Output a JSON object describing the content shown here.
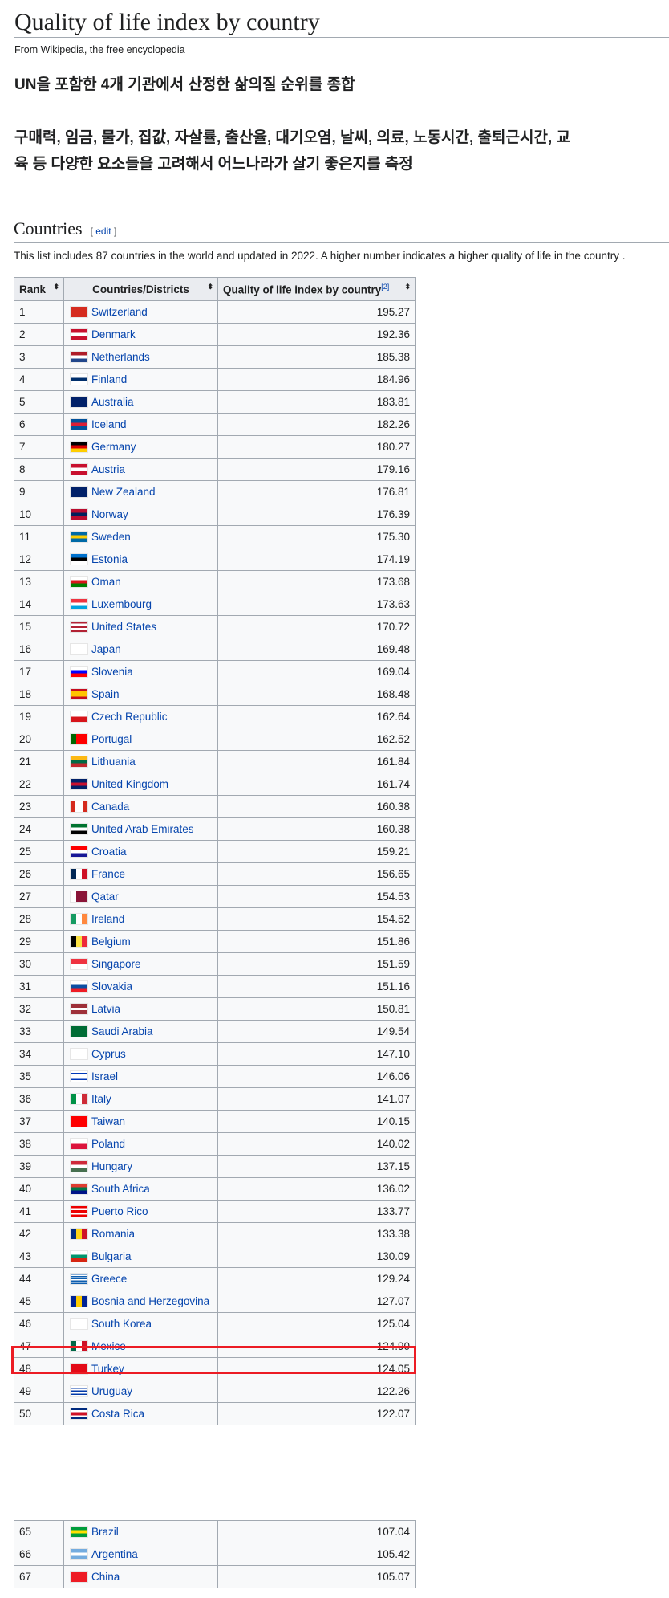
{
  "page": {
    "title": "Quality of life index by country",
    "tagline": "From Wikipedia, the free encyclopedia",
    "intro_line1": "UN을 포함한 4개 기관에서 산정한 삶의질 순위를 종합",
    "intro_line2": "구매력, 임금, 물가, 집값, 자살률, 출산율, 대기오염, 날씨, 의료, 노동시간, 출퇴근시간, 교육 등 다양한 요소들을 고려해서 어느나라가 살기 좋은지를 측정",
    "section_title": "Countries",
    "edit_open": "[",
    "edit_label": "edit",
    "edit_close": "]",
    "description": "This list includes 87 countries in the world and updated in 2022. A higher number indicates a higher quality of life in the country ."
  },
  "colors": {
    "link": "#0645ad",
    "border": "#a2a9b1",
    "header_bg": "#eaecf0",
    "cell_bg": "#f8f9fa",
    "highlight": "#ec1c24"
  },
  "table": {
    "headers": {
      "rank": "Rank",
      "country": "Countries/Districts",
      "index": "Quality of life index by country",
      "index_ref": "[2]",
      "sort_icon": "⬍"
    },
    "highlighted_rank": "46",
    "rows": [
      {
        "rank": "1",
        "country": "Switzerland",
        "value": "195.27",
        "flag": {
          "dir": "h",
          "colors": [
            "#d52b1e"
          ]
        }
      },
      {
        "rank": "2",
        "country": "Denmark",
        "value": "192.36",
        "flag": {
          "dir": "h",
          "colors": [
            "#c8102e",
            "#fff",
            "#c8102e"
          ]
        }
      },
      {
        "rank": "3",
        "country": "Netherlands",
        "value": "185.38",
        "flag": {
          "dir": "h",
          "colors": [
            "#ae1c28",
            "#fff",
            "#21468b"
          ]
        }
      },
      {
        "rank": "4",
        "country": "Finland",
        "value": "184.96",
        "flag": {
          "dir": "h",
          "colors": [
            "#fff",
            "#002f6c",
            "#fff"
          ]
        }
      },
      {
        "rank": "5",
        "country": "Australia",
        "value": "183.81",
        "flag": {
          "dir": "h",
          "colors": [
            "#012169"
          ]
        }
      },
      {
        "rank": "6",
        "country": "Iceland",
        "value": "182.26",
        "flag": {
          "dir": "h",
          "colors": [
            "#02529c",
            "#dc1e35",
            "#02529c"
          ]
        }
      },
      {
        "rank": "7",
        "country": "Germany",
        "value": "180.27",
        "flag": {
          "dir": "h",
          "colors": [
            "#000",
            "#dd0000",
            "#ffce00"
          ]
        }
      },
      {
        "rank": "8",
        "country": "Austria",
        "value": "179.16",
        "flag": {
          "dir": "h",
          "colors": [
            "#c8102e",
            "#fff",
            "#c8102e"
          ]
        }
      },
      {
        "rank": "9",
        "country": "New Zealand",
        "value": "176.81",
        "flag": {
          "dir": "h",
          "colors": [
            "#012169"
          ]
        }
      },
      {
        "rank": "10",
        "country": "Norway",
        "value": "176.39",
        "flag": {
          "dir": "h",
          "colors": [
            "#ba0c2f",
            "#00205b",
            "#ba0c2f"
          ]
        }
      },
      {
        "rank": "11",
        "country": "Sweden",
        "value": "175.30",
        "flag": {
          "dir": "h",
          "colors": [
            "#006aa7",
            "#fecc00",
            "#006aa7"
          ]
        }
      },
      {
        "rank": "12",
        "country": "Estonia",
        "value": "174.19",
        "flag": {
          "dir": "h",
          "colors": [
            "#0072ce",
            "#000",
            "#fff"
          ]
        }
      },
      {
        "rank": "13",
        "country": "Oman",
        "value": "173.68",
        "flag": {
          "dir": "h",
          "colors": [
            "#fff",
            "#db161b",
            "#008000"
          ]
        }
      },
      {
        "rank": "14",
        "country": "Luxembourg",
        "value": "173.63",
        "flag": {
          "dir": "h",
          "colors": [
            "#ef3340",
            "#fff",
            "#00a3e0"
          ]
        }
      },
      {
        "rank": "15",
        "country": "United States",
        "value": "170.72",
        "flag": {
          "dir": "h",
          "colors": [
            "#b22234",
            "#fff",
            "#b22234",
            "#fff",
            "#b22234"
          ]
        }
      },
      {
        "rank": "16",
        "country": "Japan",
        "value": "169.48",
        "flag": {
          "dir": "h",
          "colors": [
            "#fff"
          ]
        }
      },
      {
        "rank": "17",
        "country": "Slovenia",
        "value": "169.04",
        "flag": {
          "dir": "h",
          "colors": [
            "#fff",
            "#0000ff",
            "#ff0000"
          ]
        }
      },
      {
        "rank": "18",
        "country": "Spain",
        "value": "168.48",
        "flag": {
          "dir": "h",
          "colors": [
            "#c60b1e",
            "#ffc400",
            "#ffc400",
            "#c60b1e"
          ]
        }
      },
      {
        "rank": "19",
        "country": "Czech Republic",
        "value": "162.64",
        "flag": {
          "dir": "h",
          "colors": [
            "#fff",
            "#d7141a"
          ]
        }
      },
      {
        "rank": "20",
        "country": "Portugal",
        "value": "162.52",
        "flag": {
          "dir": "v",
          "colors": [
            "#006600",
            "#ff0000",
            "#ff0000"
          ]
        }
      },
      {
        "rank": "21",
        "country": "Lithuania",
        "value": "161.84",
        "flag": {
          "dir": "h",
          "colors": [
            "#fdb913",
            "#006a44",
            "#c1272d"
          ]
        }
      },
      {
        "rank": "22",
        "country": "United Kingdom",
        "value": "161.74",
        "flag": {
          "dir": "h",
          "colors": [
            "#012169",
            "#c8102e",
            "#012169"
          ]
        }
      },
      {
        "rank": "23",
        "country": "Canada",
        "value": "160.38",
        "flag": {
          "dir": "v",
          "colors": [
            "#d52b1e",
            "#fff",
            "#fff",
            "#d52b1e"
          ]
        }
      },
      {
        "rank": "24",
        "country": "United Arab Emirates",
        "value": "160.38",
        "flag": {
          "dir": "h",
          "colors": [
            "#00732f",
            "#fff",
            "#000"
          ]
        }
      },
      {
        "rank": "25",
        "country": "Croatia",
        "value": "159.21",
        "flag": {
          "dir": "h",
          "colors": [
            "#ff0000",
            "#fff",
            "#171796"
          ]
        }
      },
      {
        "rank": "26",
        "country": "France",
        "value": "156.65",
        "flag": {
          "dir": "v",
          "colors": [
            "#002654",
            "#fff",
            "#ce1126"
          ]
        }
      },
      {
        "rank": "27",
        "country": "Qatar",
        "value": "154.53",
        "flag": {
          "dir": "v",
          "colors": [
            "#fff",
            "#8a1538",
            "#8a1538"
          ]
        }
      },
      {
        "rank": "28",
        "country": "Ireland",
        "value": "154.52",
        "flag": {
          "dir": "v",
          "colors": [
            "#169b62",
            "#fff",
            "#ff883e"
          ]
        }
      },
      {
        "rank": "29",
        "country": "Belgium",
        "value": "151.86",
        "flag": {
          "dir": "v",
          "colors": [
            "#000",
            "#fae042",
            "#ed2939"
          ]
        }
      },
      {
        "rank": "30",
        "country": "Singapore",
        "value": "151.59",
        "flag": {
          "dir": "h",
          "colors": [
            "#ef3340",
            "#fff"
          ]
        }
      },
      {
        "rank": "31",
        "country": "Slovakia",
        "value": "151.16",
        "flag": {
          "dir": "h",
          "colors": [
            "#fff",
            "#0b4ea2",
            "#ee1c25"
          ]
        }
      },
      {
        "rank": "32",
        "country": "Latvia",
        "value": "150.81",
        "flag": {
          "dir": "h",
          "colors": [
            "#9e3039",
            "#9e3039",
            "#fff",
            "#9e3039",
            "#9e3039"
          ]
        }
      },
      {
        "rank": "33",
        "country": "Saudi Arabia",
        "value": "149.54",
        "flag": {
          "dir": "h",
          "colors": [
            "#006c35"
          ]
        }
      },
      {
        "rank": "34",
        "country": "Cyprus",
        "value": "147.10",
        "flag": {
          "dir": "h",
          "colors": [
            "#fff"
          ]
        }
      },
      {
        "rank": "35",
        "country": "Israel",
        "value": "146.06",
        "flag": {
          "dir": "h",
          "colors": [
            "#fff",
            "#0038b8",
            "#fff",
            "#fff",
            "#fff",
            "#0038b8",
            "#fff"
          ]
        }
      },
      {
        "rank": "36",
        "country": "Italy",
        "value": "141.07",
        "flag": {
          "dir": "v",
          "colors": [
            "#009246",
            "#fff",
            "#ce2b37"
          ]
        }
      },
      {
        "rank": "37",
        "country": "Taiwan",
        "value": "140.15",
        "flag": {
          "dir": "h",
          "colors": [
            "#fe0000"
          ]
        }
      },
      {
        "rank": "38",
        "country": "Poland",
        "value": "140.02",
        "flag": {
          "dir": "h",
          "colors": [
            "#fff",
            "#dc143c"
          ]
        }
      },
      {
        "rank": "39",
        "country": "Hungary",
        "value": "137.15",
        "flag": {
          "dir": "h",
          "colors": [
            "#ce2939",
            "#fff",
            "#477050"
          ]
        }
      },
      {
        "rank": "40",
        "country": "South Africa",
        "value": "136.02",
        "flag": {
          "dir": "h",
          "colors": [
            "#e03c31",
            "#007749",
            "#001489"
          ]
        }
      },
      {
        "rank": "41",
        "country": "Puerto Rico",
        "value": "133.77",
        "flag": {
          "dir": "h",
          "colors": [
            "#ed0000",
            "#fff",
            "#ed0000",
            "#fff",
            "#ed0000"
          ]
        }
      },
      {
        "rank": "42",
        "country": "Romania",
        "value": "133.38",
        "flag": {
          "dir": "v",
          "colors": [
            "#002b7f",
            "#fcd116",
            "#ce1126"
          ]
        }
      },
      {
        "rank": "43",
        "country": "Bulgaria",
        "value": "130.09",
        "flag": {
          "dir": "h",
          "colors": [
            "#fff",
            "#00966e",
            "#d62612"
          ]
        }
      },
      {
        "rank": "44",
        "country": "Greece",
        "value": "129.24",
        "flag": {
          "dir": "h",
          "colors": [
            "#0d5eaf",
            "#fff",
            "#0d5eaf",
            "#fff",
            "#0d5eaf",
            "#fff",
            "#0d5eaf",
            "#fff",
            "#0d5eaf"
          ]
        }
      },
      {
        "rank": "45",
        "country": "Bosnia and Herzegovina",
        "value": "127.07",
        "flag": {
          "dir": "v",
          "colors": [
            "#002395",
            "#fecb00",
            "#002395"
          ]
        }
      },
      {
        "rank": "46",
        "country": "South Korea",
        "value": "125.04",
        "flag": {
          "dir": "h",
          "colors": [
            "#fff"
          ]
        }
      },
      {
        "rank": "47",
        "country": "Mexico",
        "value": "124.90",
        "flag": {
          "dir": "v",
          "colors": [
            "#006847",
            "#fff",
            "#ce1126"
          ]
        }
      },
      {
        "rank": "48",
        "country": "Turkey",
        "value": "124.05",
        "flag": {
          "dir": "h",
          "colors": [
            "#e30a17"
          ]
        }
      },
      {
        "rank": "49",
        "country": "Uruguay",
        "value": "122.26",
        "flag": {
          "dir": "h",
          "colors": [
            "#fff",
            "#0038a8",
            "#fff",
            "#0038a8",
            "#fff",
            "#0038a8",
            "#fff"
          ]
        }
      },
      {
        "rank": "50",
        "country": "Costa Rica",
        "value": "122.07",
        "flag": {
          "dir": "h",
          "colors": [
            "#002b7f",
            "#fff",
            "#ce1126",
            "#ce1126",
            "#fff",
            "#002b7f"
          ]
        }
      }
    ],
    "rows_continued": [
      {
        "rank": "65",
        "country": "Brazil",
        "value": "107.04",
        "flag": {
          "dir": "h",
          "colors": [
            "#009c3b",
            "#ffdf00",
            "#009c3b"
          ]
        }
      },
      {
        "rank": "66",
        "country": "Argentina",
        "value": "105.42",
        "flag": {
          "dir": "h",
          "colors": [
            "#74acdf",
            "#fff",
            "#74acdf"
          ]
        }
      },
      {
        "rank": "67",
        "country": "China",
        "value": "105.07",
        "flag": {
          "dir": "h",
          "colors": [
            "#ee1c25"
          ]
        }
      }
    ]
  }
}
